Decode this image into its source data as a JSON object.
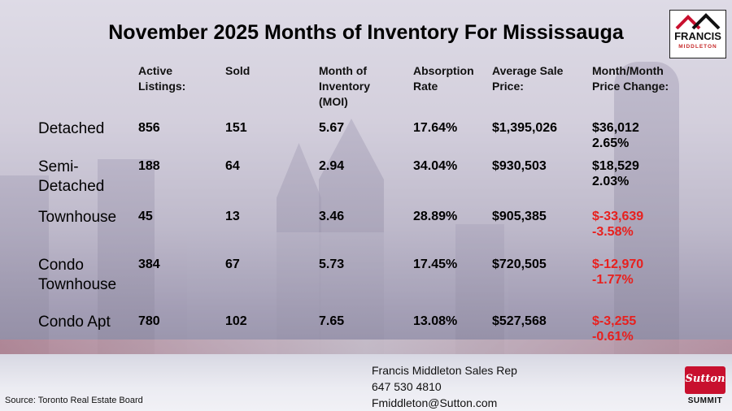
{
  "title": "November 2025 Months of Inventory For Mississauga",
  "headers": {
    "active": [
      "Active",
      "Listings:"
    ],
    "sold": [
      "Sold"
    ],
    "moi": [
      "Month of",
      "Inventory",
      "(MOI)"
    ],
    "absorption": [
      "Absorption",
      "Rate"
    ],
    "avg_price": [
      "Average Sale",
      "Price:"
    ],
    "mom_change": [
      "Month/Month",
      "Price Change:"
    ]
  },
  "rows": [
    {
      "label": [
        "Detached"
      ],
      "active": "856",
      "sold": "151",
      "moi": "5.67",
      "absorption": "17.64%",
      "avg_price": "$1,395,026",
      "change_amount": "$36,012",
      "change_pct": "2.65%",
      "negative": false
    },
    {
      "label": [
        "Semi-",
        "Detached"
      ],
      "active": "188",
      "sold": "64",
      "moi": "2.94",
      "absorption": "34.04%",
      "avg_price": "$930,503",
      "change_amount": "$18,529",
      "change_pct": "2.03%",
      "negative": false
    },
    {
      "label": [
        "Townhouse"
      ],
      "active": "45",
      "sold": "13",
      "moi": "3.46",
      "absorption": "28.89%",
      "avg_price": "$905,385",
      "change_amount": "$-33,639",
      "change_pct": "-3.58%",
      "negative": true
    },
    {
      "label": [
        "Condo",
        "Townhouse"
      ],
      "active": "384",
      "sold": "67",
      "moi": "5.73",
      "absorption": "17.45%",
      "avg_price": "$720,505",
      "change_amount": "$-12,970",
      "change_pct": "-1.77%",
      "negative": true
    },
    {
      "label": [
        "Condo Apt"
      ],
      "active": "780",
      "sold": "102",
      "moi": "7.65",
      "absorption": "13.08%",
      "avg_price": "$527,568",
      "change_amount": "$-3,255",
      "change_pct": "-0.61%",
      "negative": true
    }
  ],
  "contact": {
    "name": "Francis Middleton Sales Rep",
    "phone": "647 530 4810",
    "email": "Fmiddleton@Sutton.com"
  },
  "source": "Source: Toronto Real Estate Board",
  "logo": {
    "name": "FRANCIS",
    "sub": "MIDDLETON"
  },
  "brokerage": {
    "name": "Sutton",
    "sub": "SUMMIT"
  },
  "colors": {
    "negative": "#e8201e",
    "brand_red": "#c8102e"
  }
}
